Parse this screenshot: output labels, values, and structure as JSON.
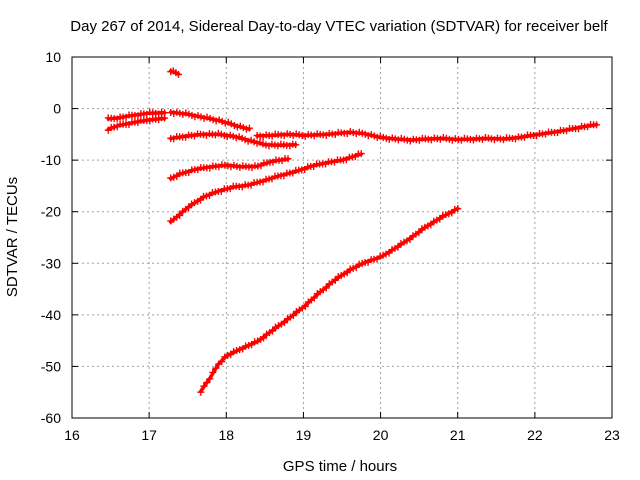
{
  "chart_data": {
    "type": "scatter",
    "title": "Day 267 of 2014, Sidereal Day-to-day VTEC variation (SDTVAR) for receiver belf",
    "xlabel": "GPS time / hours",
    "ylabel": "SDTVAR / TECUs",
    "xlim": [
      16,
      23
    ],
    "ylim": [
      -60,
      10
    ],
    "xticks": [
      16,
      17,
      18,
      19,
      20,
      21,
      22,
      23
    ],
    "yticks": [
      10,
      0,
      -10,
      -20,
      -30,
      -40,
      -50,
      -60
    ],
    "grid": true,
    "marker": "plus",
    "color": "#ff0000",
    "series": [
      {
        "name": "arc-top-left-upper",
        "x": [
          16.47,
          16.6,
          16.8,
          17.0,
          17.2
        ],
        "y": [
          -2.0,
          -1.8,
          -1.3,
          -0.9,
          -0.8
        ]
      },
      {
        "name": "arc-top-left-lower",
        "x": [
          16.47,
          16.6,
          16.8,
          17.0,
          17.2
        ],
        "y": [
          -4.0,
          -3.3,
          -2.7,
          -2.2,
          -1.9
        ]
      },
      {
        "name": "arc-isolated",
        "x": [
          17.28,
          17.33,
          17.38
        ],
        "y": [
          7.3,
          7.0,
          6.7
        ]
      },
      {
        "name": "arc-declining",
        "x": [
          17.28,
          17.5,
          17.7,
          17.9,
          18.1,
          18.3
        ],
        "y": [
          -0.7,
          -1.1,
          -1.7,
          -2.3,
          -3.2,
          -4.0
        ]
      },
      {
        "name": "arc-long-flat",
        "x": [
          17.28,
          17.5,
          17.7,
          17.9,
          18.1,
          18.3,
          18.5,
          18.7,
          18.9
        ],
        "y": [
          -5.8,
          -5.3,
          -5.0,
          -5.0,
          -5.4,
          -6.2,
          -7.0,
          -7.1,
          -7.0
        ]
      },
      {
        "name": "arc-long-flat-continued",
        "x": [
          18.4,
          18.6,
          18.8,
          19.0,
          19.2,
          19.4,
          19.6,
          19.8,
          20.0,
          20.2,
          20.4,
          20.6,
          20.8,
          21.0,
          21.2,
          21.4,
          21.6,
          21.8,
          22.0,
          22.2,
          22.4,
          22.6,
          22.8
        ],
        "y": [
          -5.3,
          -5.2,
          -5.0,
          -5.2,
          -5.1,
          -4.9,
          -4.6,
          -4.9,
          -5.6,
          -5.9,
          -6.1,
          -5.9,
          -5.8,
          -6.0,
          -5.9,
          -5.8,
          -5.9,
          -5.6,
          -5.1,
          -4.7,
          -4.2,
          -3.6,
          -3.1
        ]
      },
      {
        "name": "arc-middle",
        "x": [
          17.28,
          17.4,
          17.6,
          17.8,
          18.0,
          18.2,
          18.4,
          18.6,
          18.8
        ],
        "y": [
          -13.6,
          -12.7,
          -11.8,
          -11.3,
          -11.0,
          -11.3,
          -11.2,
          -10.2,
          -9.8
        ]
      },
      {
        "name": "arc-lower",
        "x": [
          17.28,
          17.5,
          17.7,
          17.9,
          18.1,
          18.3,
          18.5,
          18.7,
          18.9,
          19.1,
          19.3,
          19.5,
          19.75
        ],
        "y": [
          -22.0,
          -19.2,
          -17.2,
          -16.0,
          -15.2,
          -14.8,
          -13.9,
          -13.0,
          -12.2,
          -11.2,
          -10.5,
          -10.0,
          -8.8
        ]
      },
      {
        "name": "arc-steep",
        "x": [
          17.67,
          17.8,
          17.9,
          18.0,
          18.2,
          18.4,
          18.6,
          18.8,
          19.0,
          19.2,
          19.4,
          19.6,
          19.8,
          20.0,
          20.2,
          20.4,
          20.6,
          20.8,
          21.0
        ],
        "y": [
          -54.8,
          -52.0,
          -49.5,
          -48.0,
          -46.5,
          -45.2,
          -43.0,
          -40.8,
          -38.5,
          -35.8,
          -33.3,
          -31.3,
          -29.8,
          -28.8,
          -27.0,
          -25.0,
          -22.8,
          -21.0,
          -19.4
        ]
      }
    ]
  }
}
